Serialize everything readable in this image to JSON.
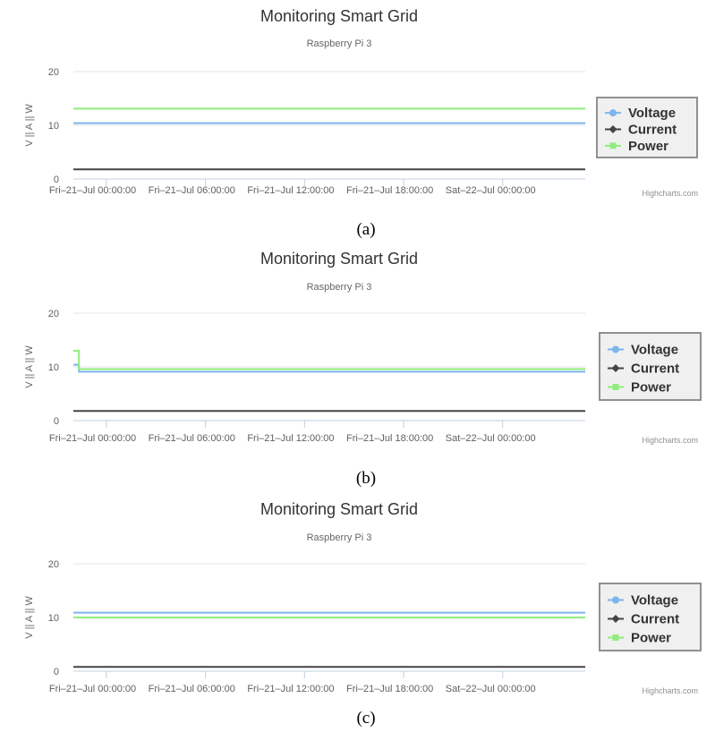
{
  "figure": {
    "panel_labels": [
      "(a)",
      "(b)",
      "(c)"
    ],
    "credit": "Highcharts.com"
  },
  "chart_data": [
    {
      "type": "line",
      "title": "Monitoring Smart Grid",
      "subtitle": "Raspberry Pi 3",
      "xlabel": "",
      "ylabel": "V || A || W",
      "ylim": [
        0,
        20
      ],
      "yticks": [
        0,
        10,
        20
      ],
      "xlim": [
        "2017-07-20T22:00:00",
        "2017-07-22T05:00:00"
      ],
      "xticks": [
        "2017-07-21T00:00:00",
        "2017-07-21T06:00:00",
        "2017-07-21T12:00:00",
        "2017-07-21T18:00:00",
        "2017-07-22T00:00:00"
      ],
      "xtick_labels": [
        "Fri–21–Jul 00:00:00",
        "Fri–21–Jul 06:00:00",
        "Fri–21–Jul 12:00:00",
        "Fri–21–Jul 18:00:00",
        "Sat–22–Jul 00:00:00"
      ],
      "legend_position": "right",
      "grid": true,
      "series": [
        {
          "name": "Voltage",
          "color": "#7cb5ec",
          "marker": "circle",
          "points": [
            [
              "2017-07-20T22:00:00",
              10.4
            ],
            [
              "2017-07-22T05:00:00",
              10.4
            ]
          ]
        },
        {
          "name": "Current",
          "color": "#434348",
          "marker": "diamond",
          "points": [
            [
              "2017-07-20T22:00:00",
              1.8
            ],
            [
              "2017-07-22T05:00:00",
              1.8
            ]
          ]
        },
        {
          "name": "Power",
          "color": "#90ed7d",
          "marker": "square",
          "points": [
            [
              "2017-07-20T22:00:00",
              13.1
            ],
            [
              "2017-07-22T05:00:00",
              13.1
            ]
          ]
        }
      ]
    },
    {
      "type": "line",
      "title": "Monitoring Smart Grid",
      "subtitle": "Raspberry Pi 3",
      "xlabel": "",
      "ylabel": "V || A || W",
      "ylim": [
        0,
        20
      ],
      "yticks": [
        0,
        10,
        20
      ],
      "xlim": [
        "2017-07-20T22:00:00",
        "2017-07-22T05:00:00"
      ],
      "xticks": [
        "2017-07-21T00:00:00",
        "2017-07-21T06:00:00",
        "2017-07-21T12:00:00",
        "2017-07-21T18:00:00",
        "2017-07-22T00:00:00"
      ],
      "xtick_labels": [
        "Fri–21–Jul 00:00:00",
        "Fri–21–Jul 06:00:00",
        "Fri–21–Jul 12:00:00",
        "Fri–21–Jul 18:00:00",
        "Sat–22–Jul 00:00:00"
      ],
      "legend_position": "right",
      "grid": true,
      "series": [
        {
          "name": "Voltage",
          "color": "#7cb5ec",
          "marker": "circle",
          "points": [
            [
              "2017-07-20T22:00:00",
              10.4
            ],
            [
              "2017-07-20T22:20:00",
              10.4
            ],
            [
              "2017-07-20T22:20:00",
              9.1
            ],
            [
              "2017-07-22T05:00:00",
              9.1
            ]
          ]
        },
        {
          "name": "Current",
          "color": "#434348",
          "marker": "diamond",
          "points": [
            [
              "2017-07-20T22:00:00",
              1.8
            ],
            [
              "2017-07-22T05:00:00",
              1.8
            ]
          ]
        },
        {
          "name": "Power",
          "color": "#90ed7d",
          "marker": "square",
          "points": [
            [
              "2017-07-20T22:00:00",
              13.0
            ],
            [
              "2017-07-20T22:20:00",
              13.0
            ],
            [
              "2017-07-20T22:20:00",
              9.6
            ],
            [
              "2017-07-22T05:00:00",
              9.6
            ]
          ]
        }
      ]
    },
    {
      "type": "line",
      "title": "Monitoring Smart Grid",
      "subtitle": "Raspberry Pi 3",
      "xlabel": "",
      "ylabel": "V || A || W",
      "ylim": [
        0,
        20
      ],
      "yticks": [
        0,
        10,
        20
      ],
      "xlim": [
        "2017-07-20T22:00:00",
        "2017-07-22T05:00:00"
      ],
      "xticks": [
        "2017-07-21T00:00:00",
        "2017-07-21T06:00:00",
        "2017-07-21T12:00:00",
        "2017-07-21T18:00:00",
        "2017-07-22T00:00:00"
      ],
      "xtick_labels": [
        "Fri–21–Jul 00:00:00",
        "Fri–21–Jul 06:00:00",
        "Fri–21–Jul 12:00:00",
        "Fri–21–Jul 18:00:00",
        "Sat–22–Jul 00:00:00"
      ],
      "legend_position": "right",
      "grid": true,
      "series": [
        {
          "name": "Voltage",
          "color": "#7cb5ec",
          "marker": "circle",
          "points": [
            [
              "2017-07-20T22:00:00",
              10.9
            ],
            [
              "2017-07-22T05:00:00",
              10.9
            ]
          ]
        },
        {
          "name": "Current",
          "color": "#434348",
          "marker": "diamond",
          "points": [
            [
              "2017-07-20T22:00:00",
              0.8
            ],
            [
              "2017-07-22T05:00:00",
              0.8
            ]
          ]
        },
        {
          "name": "Power",
          "color": "#90ed7d",
          "marker": "square",
          "points": [
            [
              "2017-07-20T22:00:00",
              10.0
            ],
            [
              "2017-07-22T05:00:00",
              10.0
            ]
          ]
        }
      ]
    }
  ]
}
